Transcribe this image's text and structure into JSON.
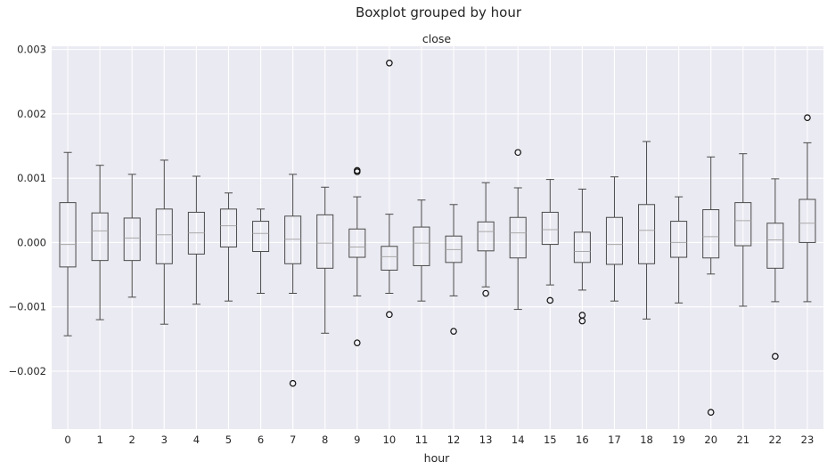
{
  "chart_data": {
    "type": "boxplot",
    "suptitle": "Boxplot grouped by hour",
    "title": "close",
    "xlabel": "hour",
    "ylabel": "",
    "grid": true,
    "ylim": [
      -0.0029,
      0.00305
    ],
    "yticks": [
      {
        "value": -0.002,
        "label": "−0.002"
      },
      {
        "value": -0.001,
        "label": "−0.001"
      },
      {
        "value": 0.0,
        "label": "0.000"
      },
      {
        "value": 0.001,
        "label": "0.001"
      },
      {
        "value": 0.002,
        "label": "0.002"
      },
      {
        "value": 0.003,
        "label": "0.003"
      }
    ],
    "categories": [
      "0",
      "1",
      "2",
      "3",
      "4",
      "5",
      "6",
      "7",
      "8",
      "9",
      "10",
      "11",
      "12",
      "13",
      "14",
      "15",
      "16",
      "17",
      "18",
      "19",
      "20",
      "21",
      "22",
      "23"
    ],
    "boxes": [
      {
        "whislo": -0.00145,
        "q1": -0.00038,
        "med": -3e-05,
        "q3": 0.00062,
        "whishi": 0.0014,
        "fliers": []
      },
      {
        "whislo": -0.0012,
        "q1": -0.00028,
        "med": 0.00018,
        "q3": 0.00046,
        "whishi": 0.0012,
        "fliers": []
      },
      {
        "whislo": -0.00085,
        "q1": -0.00028,
        "med": 7e-05,
        "q3": 0.00038,
        "whishi": 0.00106,
        "fliers": []
      },
      {
        "whislo": -0.00127,
        "q1": -0.00033,
        "med": 0.00012,
        "q3": 0.00052,
        "whishi": 0.00128,
        "fliers": []
      },
      {
        "whislo": -0.00096,
        "q1": -0.00018,
        "med": 0.00015,
        "q3": 0.00047,
        "whishi": 0.00103,
        "fliers": []
      },
      {
        "whislo": -0.00091,
        "q1": -7e-05,
        "med": 0.00026,
        "q3": 0.00052,
        "whishi": 0.00077,
        "fliers": []
      },
      {
        "whislo": -0.00079,
        "q1": -0.00014,
        "med": 0.00014,
        "q3": 0.00033,
        "whishi": 0.00052,
        "fliers": []
      },
      {
        "whislo": -0.00079,
        "q1": -0.00033,
        "med": 5e-05,
        "q3": 0.00041,
        "whishi": 0.00106,
        "fliers": [
          -0.00219
        ]
      },
      {
        "whislo": -0.00141,
        "q1": -0.0004,
        "med": -1e-05,
        "q3": 0.00043,
        "whishi": 0.00086,
        "fliers": []
      },
      {
        "whislo": -0.00083,
        "q1": -0.00023,
        "med": -7e-05,
        "q3": 0.00021,
        "whishi": 0.00071,
        "fliers": [
          -0.00156,
          0.0011,
          0.00112
        ]
      },
      {
        "whislo": -0.00079,
        "q1": -0.00043,
        "med": -0.00022,
        "q3": -6e-05,
        "whishi": 0.00044,
        "fliers": [
          -0.00112,
          0.00279
        ]
      },
      {
        "whislo": -0.00091,
        "q1": -0.00036,
        "med": -1e-05,
        "q3": 0.00024,
        "whishi": 0.00066,
        "fliers": []
      },
      {
        "whislo": -0.00083,
        "q1": -0.00031,
        "med": -0.00011,
        "q3": 0.0001,
        "whishi": 0.00059,
        "fliers": [
          -0.00138
        ]
      },
      {
        "whislo": -0.00069,
        "q1": -0.00013,
        "med": 0.00017,
        "q3": 0.00032,
        "whishi": 0.00093,
        "fliers": [
          -0.00079
        ]
      },
      {
        "whislo": -0.00104,
        "q1": -0.00024,
        "med": 0.00015,
        "q3": 0.00039,
        "whishi": 0.00085,
        "fliers": [
          0.0014
        ]
      },
      {
        "whislo": -0.00066,
        "q1": -3e-05,
        "med": 0.0002,
        "q3": 0.00047,
        "whishi": 0.00098,
        "fliers": [
          -0.0009
        ]
      },
      {
        "whislo": -0.00074,
        "q1": -0.00031,
        "med": -0.00014,
        "q3": 0.00016,
        "whishi": 0.00083,
        "fliers": [
          -0.00113,
          -0.00122
        ]
      },
      {
        "whislo": -0.00091,
        "q1": -0.00034,
        "med": -3e-05,
        "q3": 0.00039,
        "whishi": 0.00102,
        "fliers": []
      },
      {
        "whislo": -0.00119,
        "q1": -0.00033,
        "med": 0.00019,
        "q3": 0.00059,
        "whishi": 0.00157,
        "fliers": []
      },
      {
        "whislo": -0.00094,
        "q1": -0.00023,
        "med": 0.0,
        "q3": 0.00033,
        "whishi": 0.00071,
        "fliers": []
      },
      {
        "whislo": -0.00049,
        "q1": -0.00024,
        "med": 9e-05,
        "q3": 0.00051,
        "whishi": 0.00133,
        "fliers": [
          -0.00264
        ]
      },
      {
        "whislo": -0.00099,
        "q1": -5e-05,
        "med": 0.00034,
        "q3": 0.00062,
        "whishi": 0.00138,
        "fliers": []
      },
      {
        "whislo": -0.00092,
        "q1": -0.0004,
        "med": 4e-05,
        "q3": 0.0003,
        "whishi": 0.00099,
        "fliers": [
          -0.00177
        ]
      },
      {
        "whislo": -0.00092,
        "q1": 0.0,
        "med": 0.0003,
        "q3": 0.00067,
        "whishi": 0.00155,
        "fliers": [
          0.00194
        ]
      }
    ],
    "colors": {
      "background": "#eaeaf2",
      "grid": "#ffffff",
      "box": "#4a4a4a",
      "median": "#a9a9a9",
      "text": "#262626"
    }
  }
}
